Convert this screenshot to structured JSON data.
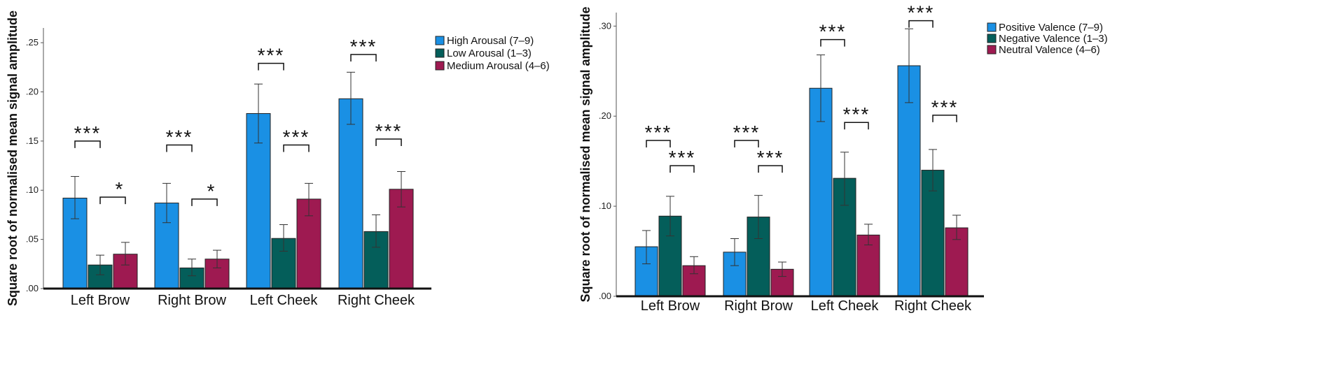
{
  "colors": {
    "series": [
      "#1a90e4",
      "#045e5a",
      "#9e1a51"
    ],
    "axis": "#111111",
    "errorbar": "#333333"
  },
  "chart_data": [
    {
      "type": "bar",
      "ylabel": "Square root of normalised mean signal amplitude",
      "xlabel": "",
      "ylim": [
        0,
        0.265
      ],
      "yticks": [
        0,
        0.05,
        0.1,
        0.15,
        0.2,
        0.25
      ],
      "ytick_labels": [
        ".00",
        ".05",
        ".10",
        ".15",
        ".20",
        ".25"
      ],
      "categories": [
        "Left Brow",
        "Right Brow",
        "Left Cheek",
        "Right Cheek"
      ],
      "legend_position": "top-right",
      "series": [
        {
          "name": "High Arousal (7–9)",
          "values": [
            0.092,
            0.087,
            0.178,
            0.193
          ],
          "err_low": [
            0.071,
            0.067,
            0.148,
            0.167
          ],
          "err_high": [
            0.114,
            0.107,
            0.208,
            0.22
          ]
        },
        {
          "name": "Low Arousal (1–3)",
          "values": [
            0.024,
            0.021,
            0.051,
            0.058
          ],
          "err_low": [
            0.014,
            0.013,
            0.038,
            0.042
          ],
          "err_high": [
            0.034,
            0.03,
            0.065,
            0.075
          ]
        },
        {
          "name": "Medium Arousal (4–6)",
          "values": [
            0.035,
            0.03,
            0.091,
            0.101
          ],
          "err_low": [
            0.024,
            0.021,
            0.074,
            0.083
          ],
          "err_high": [
            0.047,
            0.039,
            0.107,
            0.119
          ]
        }
      ],
      "significance": [
        {
          "category": 0,
          "from": 0,
          "to": 1,
          "y": 0.15,
          "label": "***"
        },
        {
          "category": 0,
          "from": 1,
          "to": 2,
          "y": 0.093,
          "label": "*"
        },
        {
          "category": 1,
          "from": 0,
          "to": 1,
          "y": 0.146,
          "label": "***"
        },
        {
          "category": 1,
          "from": 1,
          "to": 2,
          "y": 0.091,
          "label": "*"
        },
        {
          "category": 2,
          "from": 0,
          "to": 1,
          "y": 0.229,
          "label": "***"
        },
        {
          "category": 2,
          "from": 1,
          "to": 2,
          "y": 0.146,
          "label": "***"
        },
        {
          "category": 3,
          "from": 0,
          "to": 1,
          "y": 0.238,
          "label": "***"
        },
        {
          "category": 3,
          "from": 1,
          "to": 2,
          "y": 0.152,
          "label": "***"
        }
      ]
    },
    {
      "type": "bar",
      "ylabel": "Square root of normalised mean signal amplitude",
      "xlabel": "",
      "ylim": [
        0,
        0.315
      ],
      "yticks": [
        0,
        0.1,
        0.2,
        0.3
      ],
      "ytick_labels": [
        ".00",
        ".10",
        ".20",
        ".30"
      ],
      "categories": [
        "Left Brow",
        "Right Brow",
        "Left Cheek",
        "Right Cheek"
      ],
      "legend_position": "top-right",
      "series": [
        {
          "name": "Positive Valence (7–9)",
          "values": [
            0.055,
            0.049,
            0.231,
            0.256
          ],
          "err_low": [
            0.036,
            0.034,
            0.194,
            0.215
          ],
          "err_high": [
            0.073,
            0.064,
            0.268,
            0.297
          ]
        },
        {
          "name": "Negative Valence (1–3)",
          "values": [
            0.089,
            0.088,
            0.131,
            0.14
          ],
          "err_low": [
            0.067,
            0.064,
            0.101,
            0.117
          ],
          "err_high": [
            0.111,
            0.112,
            0.16,
            0.163
          ]
        },
        {
          "name": "Neutral Valence (4–6)",
          "values": [
            0.034,
            0.03,
            0.068,
            0.076
          ],
          "err_low": [
            0.025,
            0.022,
            0.057,
            0.063
          ],
          "err_high": [
            0.044,
            0.038,
            0.08,
            0.09
          ]
        }
      ],
      "significance": [
        {
          "category": 0,
          "from": 0,
          "to": 1,
          "y": 0.173,
          "label": "***"
        },
        {
          "category": 0,
          "from": 1,
          "to": 2,
          "y": 0.145,
          "label": "***"
        },
        {
          "category": 1,
          "from": 0,
          "to": 1,
          "y": 0.173,
          "label": "***"
        },
        {
          "category": 1,
          "from": 1,
          "to": 2,
          "y": 0.145,
          "label": "***"
        },
        {
          "category": 2,
          "from": 0,
          "to": 1,
          "y": 0.285,
          "label": "***"
        },
        {
          "category": 2,
          "from": 1,
          "to": 2,
          "y": 0.193,
          "label": "***"
        },
        {
          "category": 3,
          "from": 0,
          "to": 1,
          "y": 0.306,
          "label": "***"
        },
        {
          "category": 3,
          "from": 1,
          "to": 2,
          "y": 0.201,
          "label": "***"
        }
      ]
    }
  ]
}
